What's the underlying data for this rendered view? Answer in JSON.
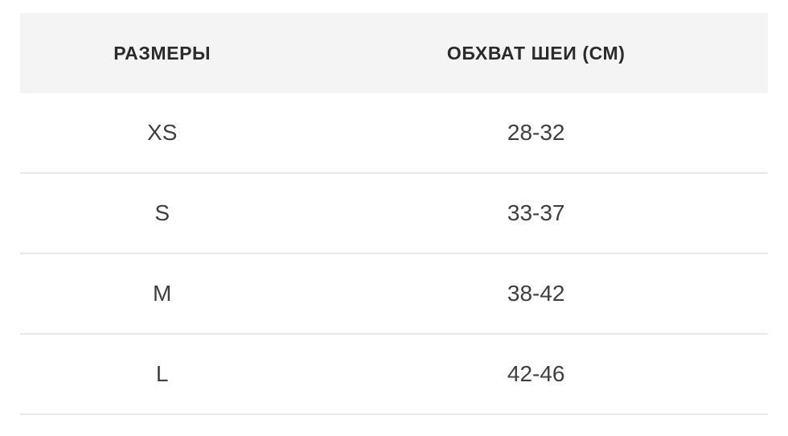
{
  "size_chart": {
    "columns": [
      {
        "label": "РАЗМЕРЫ"
      },
      {
        "label": "ОБХВАТ ШЕИ (СМ)"
      }
    ],
    "rows": [
      {
        "size": "XS",
        "neck_cm": "28-32"
      },
      {
        "size": "S",
        "neck_cm": "33-37"
      },
      {
        "size": "M",
        "neck_cm": "38-42"
      },
      {
        "size": "L",
        "neck_cm": "42-46"
      }
    ]
  },
  "colors": {
    "page-bg": "#ffffff",
    "header-bg": "#f4f4f4",
    "header-text": "#2b2b2b",
    "body-text": "#3f3f3f",
    "divider": "#e8e8e8"
  }
}
